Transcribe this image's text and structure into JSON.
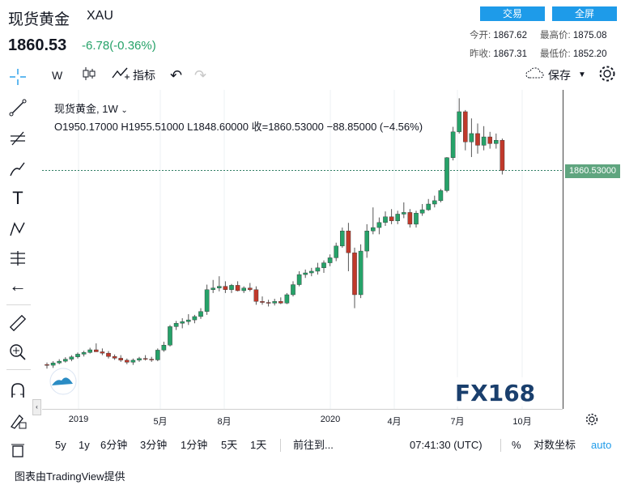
{
  "header": {
    "title": "现货黄金",
    "symbol": "XAU",
    "price": "1860.53",
    "change": "-6.78(-0.36%)",
    "btn_trade": "交易",
    "btn_full": "全屏",
    "quote": {
      "open_label": "今开:",
      "open": "1867.62",
      "high_label": "最高价:",
      "high": "1875.08",
      "prev_label": "昨收:",
      "prev": "1867.31",
      "low_label": "最低价:",
      "low": "1852.20"
    }
  },
  "toolbar": {
    "interval": "W",
    "indicators": "指标",
    "save": "保存"
  },
  "legend": {
    "name": "现货黄金, 1W",
    "ohlc": "O1950.17000   H1955.51000   L1848.60000   收=1860.53000   −88.85000 (−4.56%)"
  },
  "price_tag": "1860.53000",
  "watermark": "FX168",
  "time_axis": [
    "2019",
    "5月",
    "8月",
    "2020",
    "4月",
    "7月",
    "10月"
  ],
  "bottom_bar": {
    "ranges": [
      "5y",
      "1y",
      "6分钟",
      "3分钟",
      "1分钟",
      "5天",
      "1天"
    ],
    "goto": "前往到...",
    "time": "07:41:30 (UTC)",
    "percent": "%",
    "log": "对数坐标",
    "auto": "auto"
  },
  "footer": "图表由TradingView提供",
  "colors": {
    "up": "#26a269",
    "down": "#c0392b",
    "accent": "#1e9be9",
    "price_tag_bg": "#5fa57f"
  },
  "chart_data": {
    "type": "candlestick",
    "title": "现货黄金, 1W",
    "ylim": [
      1200,
      2000
    ],
    "candles": [
      {
        "o": 1282,
        "h": 1288,
        "l": 1270,
        "c": 1280
      },
      {
        "o": 1280,
        "h": 1292,
        "l": 1272,
        "c": 1287
      },
      {
        "o": 1287,
        "h": 1298,
        "l": 1283,
        "c": 1292
      },
      {
        "o": 1292,
        "h": 1304,
        "l": 1288,
        "c": 1298
      },
      {
        "o": 1298,
        "h": 1310,
        "l": 1292,
        "c": 1305
      },
      {
        "o": 1305,
        "h": 1318,
        "l": 1300,
        "c": 1313
      },
      {
        "o": 1313,
        "h": 1323,
        "l": 1306,
        "c": 1318
      },
      {
        "o": 1318,
        "h": 1332,
        "l": 1315,
        "c": 1326
      },
      {
        "o": 1326,
        "h": 1345,
        "l": 1320,
        "c": 1320
      },
      {
        "o": 1320,
        "h": 1330,
        "l": 1310,
        "c": 1316
      },
      {
        "o": 1316,
        "h": 1322,
        "l": 1300,
        "c": 1306
      },
      {
        "o": 1306,
        "h": 1312,
        "l": 1296,
        "c": 1301
      },
      {
        "o": 1301,
        "h": 1310,
        "l": 1290,
        "c": 1295
      },
      {
        "o": 1295,
        "h": 1300,
        "l": 1283,
        "c": 1289
      },
      {
        "o": 1289,
        "h": 1300,
        "l": 1281,
        "c": 1295
      },
      {
        "o": 1295,
        "h": 1305,
        "l": 1290,
        "c": 1300
      },
      {
        "o": 1300,
        "h": 1310,
        "l": 1294,
        "c": 1298
      },
      {
        "o": 1298,
        "h": 1305,
        "l": 1290,
        "c": 1296
      },
      {
        "o": 1296,
        "h": 1330,
        "l": 1292,
        "c": 1325
      },
      {
        "o": 1325,
        "h": 1350,
        "l": 1320,
        "c": 1340
      },
      {
        "o": 1340,
        "h": 1400,
        "l": 1336,
        "c": 1395
      },
      {
        "o": 1395,
        "h": 1412,
        "l": 1385,
        "c": 1405
      },
      {
        "o": 1405,
        "h": 1420,
        "l": 1390,
        "c": 1410
      },
      {
        "o": 1410,
        "h": 1432,
        "l": 1400,
        "c": 1415
      },
      {
        "o": 1415,
        "h": 1430,
        "l": 1405,
        "c": 1425
      },
      {
        "o": 1425,
        "h": 1450,
        "l": 1418,
        "c": 1440
      },
      {
        "o": 1440,
        "h": 1520,
        "l": 1430,
        "c": 1505
      },
      {
        "o": 1505,
        "h": 1534,
        "l": 1495,
        "c": 1510
      },
      {
        "o": 1510,
        "h": 1545,
        "l": 1500,
        "c": 1515
      },
      {
        "o": 1515,
        "h": 1530,
        "l": 1495,
        "c": 1505
      },
      {
        "o": 1505,
        "h": 1522,
        "l": 1495,
        "c": 1518
      },
      {
        "o": 1518,
        "h": 1530,
        "l": 1500,
        "c": 1502
      },
      {
        "o": 1502,
        "h": 1515,
        "l": 1495,
        "c": 1510
      },
      {
        "o": 1510,
        "h": 1525,
        "l": 1500,
        "c": 1505
      },
      {
        "o": 1505,
        "h": 1515,
        "l": 1460,
        "c": 1470
      },
      {
        "o": 1470,
        "h": 1485,
        "l": 1460,
        "c": 1467
      },
      {
        "o": 1467,
        "h": 1475,
        "l": 1455,
        "c": 1465
      },
      {
        "o": 1465,
        "h": 1478,
        "l": 1458,
        "c": 1470
      },
      {
        "o": 1470,
        "h": 1482,
        "l": 1462,
        "c": 1465
      },
      {
        "o": 1465,
        "h": 1495,
        "l": 1462,
        "c": 1490
      },
      {
        "o": 1490,
        "h": 1530,
        "l": 1485,
        "c": 1520
      },
      {
        "o": 1520,
        "h": 1560,
        "l": 1515,
        "c": 1550
      },
      {
        "o": 1550,
        "h": 1565,
        "l": 1540,
        "c": 1555
      },
      {
        "o": 1555,
        "h": 1570,
        "l": 1545,
        "c": 1560
      },
      {
        "o": 1560,
        "h": 1585,
        "l": 1550,
        "c": 1570
      },
      {
        "o": 1570,
        "h": 1592,
        "l": 1555,
        "c": 1585
      },
      {
        "o": 1585,
        "h": 1610,
        "l": 1575,
        "c": 1600
      },
      {
        "o": 1600,
        "h": 1645,
        "l": 1590,
        "c": 1635
      },
      {
        "o": 1635,
        "h": 1690,
        "l": 1630,
        "c": 1680
      },
      {
        "o": 1680,
        "h": 1704,
        "l": 1560,
        "c": 1615
      },
      {
        "o": 1615,
        "h": 1630,
        "l": 1450,
        "c": 1490
      },
      {
        "o": 1490,
        "h": 1640,
        "l": 1480,
        "c": 1620
      },
      {
        "o": 1620,
        "h": 1700,
        "l": 1600,
        "c": 1680
      },
      {
        "o": 1680,
        "h": 1750,
        "l": 1670,
        "c": 1690
      },
      {
        "o": 1690,
        "h": 1720,
        "l": 1670,
        "c": 1705
      },
      {
        "o": 1705,
        "h": 1738,
        "l": 1695,
        "c": 1722
      },
      {
        "o": 1722,
        "h": 1745,
        "l": 1700,
        "c": 1710
      },
      {
        "o": 1710,
        "h": 1740,
        "l": 1700,
        "c": 1730
      },
      {
        "o": 1730,
        "h": 1765,
        "l": 1718,
        "c": 1735
      },
      {
        "o": 1735,
        "h": 1745,
        "l": 1690,
        "c": 1700
      },
      {
        "o": 1700,
        "h": 1740,
        "l": 1690,
        "c": 1733
      },
      {
        "o": 1733,
        "h": 1760,
        "l": 1725,
        "c": 1743
      },
      {
        "o": 1743,
        "h": 1775,
        "l": 1740,
        "c": 1760
      },
      {
        "o": 1760,
        "h": 1785,
        "l": 1750,
        "c": 1770
      },
      {
        "o": 1770,
        "h": 1805,
        "l": 1765,
        "c": 1800
      },
      {
        "o": 1800,
        "h": 1900,
        "l": 1795,
        "c": 1898
      },
      {
        "o": 1898,
        "h": 1990,
        "l": 1890,
        "c": 1975
      },
      {
        "o": 1975,
        "h": 2075,
        "l": 1970,
        "c": 2035
      },
      {
        "o": 2035,
        "h": 2040,
        "l": 1920,
        "c": 1945
      },
      {
        "o": 1945,
        "h": 2015,
        "l": 1900,
        "c": 1970
      },
      {
        "o": 1970,
        "h": 2000,
        "l": 1910,
        "c": 1935
      },
      {
        "o": 1935,
        "h": 1992,
        "l": 1920,
        "c": 1960
      },
      {
        "o": 1960,
        "h": 1975,
        "l": 1925,
        "c": 1940
      },
      {
        "o": 1940,
        "h": 1970,
        "l": 1925,
        "c": 1950
      },
      {
        "o": 1950,
        "h": 1955,
        "l": 1848,
        "c": 1860
      }
    ]
  }
}
